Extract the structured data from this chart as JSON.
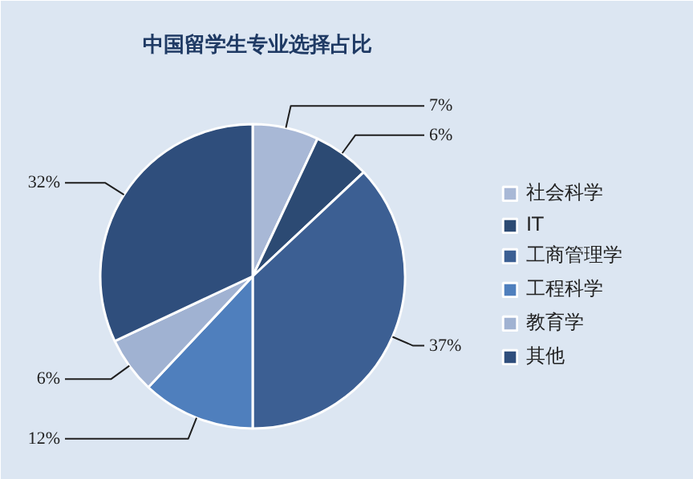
{
  "chart_data": {
    "type": "pie",
    "title": "中国留学生专业选择占比",
    "categories": [
      "社会科学",
      "IT",
      "工商管理学",
      "工程科学",
      "教育学",
      "其他"
    ],
    "values": [
      7,
      6,
      37,
      12,
      6,
      32
    ],
    "colors": [
      "#a8b8d6",
      "#2c4a73",
      "#3c5f93",
      "#4f7fbd",
      "#a0b2d2",
      "#2f4e7c"
    ],
    "value_labels": [
      "7%",
      "6%",
      "37%",
      "12%",
      "6%",
      "32%"
    ],
    "legend": "right"
  }
}
